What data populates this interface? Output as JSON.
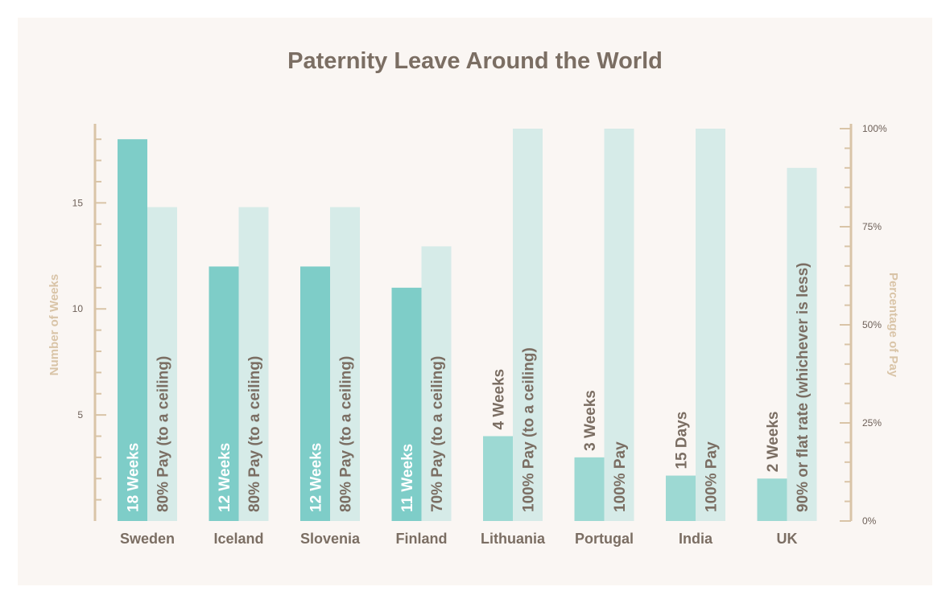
{
  "chart_data": {
    "type": "bar",
    "title": "Paternity Leave Around the World",
    "ylabel": "Number of Weeks",
    "y2label": "Percentage of Pay",
    "ylim": [
      0,
      18.5
    ],
    "y2lim": [
      0,
      100
    ],
    "yticks": [
      "5",
      "10",
      "15"
    ],
    "yticks_values": [
      5,
      10,
      15
    ],
    "y2ticks": [
      "0%",
      "25%",
      "50%",
      "75%",
      "100%"
    ],
    "y2ticks_values": [
      0,
      25,
      50,
      75,
      100
    ],
    "categories": [
      "Sweden",
      "Iceland",
      "Slovenia",
      "Finland",
      "Lithuania",
      "Portugal",
      "India",
      "UK"
    ],
    "series": [
      {
        "name": "Number of Weeks",
        "axis": "left",
        "values": [
          18,
          12,
          12,
          11,
          4,
          3,
          2.14,
          2
        ],
        "labels": [
          "18 Weeks",
          "12 Weeks",
          "12 Weeks",
          "11 Weeks",
          "4 Weeks",
          "3 Weeks",
          "15 Days",
          "2 Weeks"
        ]
      },
      {
        "name": "Percentage of Pay",
        "axis": "right",
        "values": [
          80,
          80,
          80,
          70,
          100,
          100,
          100,
          90
        ],
        "labels": [
          "80% Pay (to a ceiling)",
          "80% Pay (to a ceiling)",
          "80% Pay (to a ceiling)",
          "70% Pay (to a ceiling)",
          "100% Pay (to a ceiling)",
          "100% Pay",
          "100% Pay",
          "90% or flat rate  (whichever is less)"
        ]
      }
    ],
    "colors": {
      "weeks_bar": "#7ecdc8",
      "weeks_bar_light": "#9dd9d3",
      "pay_bar": "#d6ebe8",
      "axis": "#d9c4a7",
      "text": "#7b6e63",
      "label_light": "#ffffff"
    }
  }
}
